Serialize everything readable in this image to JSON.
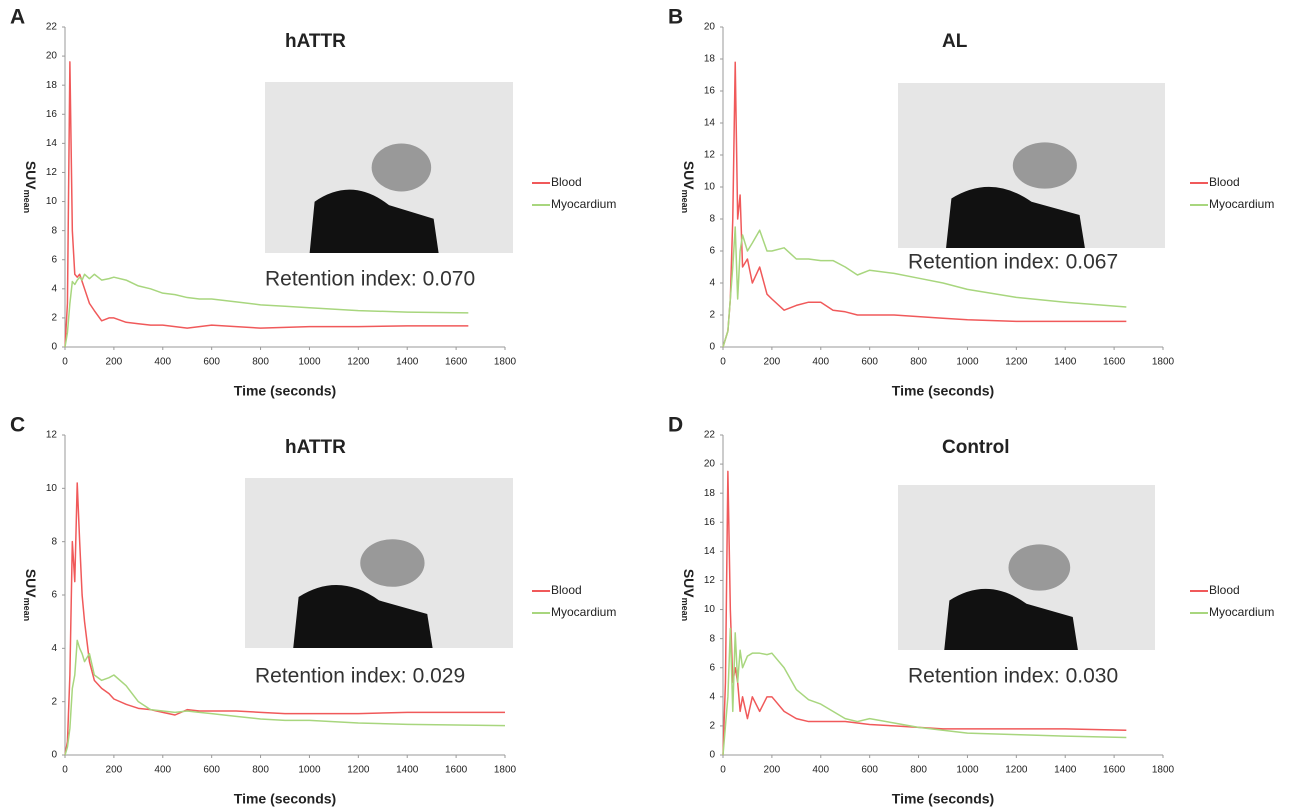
{
  "chart_data": [
    {
      "type": "line",
      "panel": "A",
      "title": "hATTR",
      "xlabel": "Time (seconds)",
      "ylabel": "SUV",
      "ylabel_sub": "mean",
      "annotation": "Retention index: 0.070",
      "x": [
        0,
        10,
        20,
        30,
        40,
        50,
        60,
        70,
        80,
        100,
        120,
        150,
        180,
        200,
        250,
        300,
        350,
        400,
        450,
        500,
        550,
        600,
        700,
        800,
        900,
        1000,
        1200,
        1400,
        1650
      ],
      "series": [
        {
          "name": "Blood",
          "color": "#f0595a",
          "values": [
            0,
            3,
            19.6,
            8,
            5,
            4.8,
            5,
            4.5,
            4,
            3,
            2.5,
            1.8,
            2,
            2,
            1.7,
            1.6,
            1.5,
            1.5,
            1.4,
            1.3,
            1.4,
            1.5,
            1.4,
            1.3,
            1.35,
            1.4,
            1.4,
            1.45,
            1.45
          ]
        },
        {
          "name": "Myocardium",
          "color": "#a8d67e",
          "values": [
            0,
            1,
            3,
            4.5,
            4.3,
            4.6,
            4.8,
            4.6,
            5,
            4.7,
            5,
            4.6,
            4.7,
            4.8,
            4.6,
            4.2,
            4,
            3.7,
            3.6,
            3.4,
            3.3,
            3.3,
            3.1,
            2.9,
            2.8,
            2.7,
            2.5,
            2.4,
            2.35
          ]
        }
      ],
      "xlim": [
        0,
        1800
      ],
      "xticks": [
        0,
        200,
        400,
        600,
        800,
        1000,
        1200,
        1400,
        1600,
        1800
      ],
      "ylim": [
        0,
        22
      ],
      "yticks": [
        0,
        2,
        4,
        6,
        8,
        10,
        12,
        14,
        16,
        18,
        20,
        22
      ]
    },
    {
      "type": "line",
      "panel": "B",
      "title": "AL",
      "xlabel": "Time (seconds)",
      "ylabel": "SUV",
      "ylabel_sub": "mean",
      "annotation": "Retention index: 0.067",
      "x": [
        0,
        10,
        20,
        30,
        40,
        50,
        60,
        70,
        80,
        100,
        120,
        150,
        180,
        200,
        250,
        300,
        350,
        400,
        450,
        500,
        550,
        600,
        700,
        800,
        900,
        1000,
        1200,
        1400,
        1650
      ],
      "series": [
        {
          "name": "Blood",
          "color": "#f0595a",
          "values": [
            0,
            0.5,
            1,
            3,
            8,
            17.8,
            8,
            9.5,
            5,
            5.5,
            4,
            5,
            3.3,
            3,
            2.3,
            2.6,
            2.8,
            2.8,
            2.3,
            2.2,
            2,
            2,
            2,
            1.9,
            1.8,
            1.7,
            1.6,
            1.6,
            1.6
          ]
        },
        {
          "name": "Myocardium",
          "color": "#a8d67e",
          "values": [
            0,
            0.5,
            1,
            3,
            5,
            7.5,
            3,
            6,
            7,
            6,
            6.5,
            7.3,
            6,
            6,
            6.2,
            5.5,
            5.5,
            5.4,
            5.4,
            5,
            4.5,
            4.8,
            4.6,
            4.3,
            4,
            3.6,
            3.1,
            2.8,
            2.5
          ]
        }
      ],
      "xlim": [
        0,
        1800
      ],
      "xticks": [
        0,
        200,
        400,
        600,
        800,
        1000,
        1200,
        1400,
        1600,
        1800
      ],
      "ylim": [
        0,
        20
      ],
      "yticks": [
        0,
        2,
        4,
        6,
        8,
        10,
        12,
        14,
        16,
        18,
        20
      ]
    },
    {
      "type": "line",
      "panel": "C",
      "title": "hATTR",
      "xlabel": "Time (seconds)",
      "ylabel": "SUV",
      "ylabel_sub": "mean",
      "annotation": "Retention index: 0.029",
      "x": [
        0,
        10,
        20,
        30,
        40,
        50,
        60,
        70,
        80,
        100,
        120,
        150,
        180,
        200,
        250,
        300,
        350,
        400,
        450,
        500,
        550,
        600,
        700,
        800,
        900,
        1000,
        1200,
        1400,
        1800
      ],
      "series": [
        {
          "name": "Blood",
          "color": "#f0595a",
          "values": [
            0,
            0.5,
            3,
            8,
            6.5,
            10.2,
            8,
            6,
            5,
            3.5,
            2.8,
            2.5,
            2.3,
            2.1,
            1.9,
            1.75,
            1.7,
            1.6,
            1.5,
            1.7,
            1.65,
            1.65,
            1.65,
            1.6,
            1.55,
            1.55,
            1.55,
            1.6,
            1.6
          ]
        },
        {
          "name": "Myocardium",
          "color": "#a8d67e",
          "values": [
            0,
            0.3,
            1,
            2.5,
            3,
            4.3,
            4,
            3.8,
            3.5,
            3.8,
            3,
            2.8,
            2.9,
            3,
            2.6,
            2.0,
            1.7,
            1.65,
            1.6,
            1.65,
            1.6,
            1.55,
            1.45,
            1.35,
            1.3,
            1.3,
            1.2,
            1.15,
            1.1
          ]
        }
      ],
      "xlim": [
        0,
        1800
      ],
      "xticks": [
        0,
        200,
        400,
        600,
        800,
        1000,
        1200,
        1400,
        1600,
        1800
      ],
      "ylim": [
        0,
        12
      ],
      "yticks": [
        0,
        2,
        4,
        6,
        8,
        10,
        12
      ]
    },
    {
      "type": "line",
      "panel": "D",
      "title": "Control",
      "xlabel": "Time (seconds)",
      "ylabel": "SUV",
      "ylabel_sub": "mean",
      "annotation": "Retention index: 0.030",
      "x": [
        0,
        10,
        20,
        30,
        40,
        50,
        60,
        70,
        80,
        100,
        120,
        150,
        180,
        200,
        250,
        300,
        350,
        400,
        450,
        500,
        550,
        600,
        700,
        800,
        900,
        1000,
        1200,
        1400,
        1650
      ],
      "series": [
        {
          "name": "Blood",
          "color": "#f0595a",
          "values": [
            0,
            5,
            19.5,
            10,
            5,
            6,
            5,
            3,
            4,
            2.5,
            4,
            3,
            4,
            4,
            3,
            2.5,
            2.3,
            2.3,
            2.3,
            2.3,
            2.2,
            2.1,
            2,
            1.9,
            1.8,
            1.8,
            1.8,
            1.8,
            1.7
          ]
        },
        {
          "name": "Myocardium",
          "color": "#a8d67e",
          "values": [
            0,
            2,
            4,
            8.7,
            3,
            8.4,
            5,
            7.2,
            6,
            6.8,
            7,
            7,
            6.9,
            7,
            6,
            4.5,
            3.8,
            3.5,
            3,
            2.5,
            2.3,
            2.5,
            2.2,
            1.9,
            1.7,
            1.5,
            1.4,
            1.3,
            1.2
          ]
        }
      ],
      "xlim": [
        0,
        1800
      ],
      "xticks": [
        0,
        200,
        400,
        600,
        800,
        1000,
        1200,
        1400,
        1600,
        1800
      ],
      "ylim": [
        0,
        22
      ],
      "yticks": [
        0,
        2,
        4,
        6,
        8,
        10,
        12,
        14,
        16,
        18,
        20,
        22
      ]
    }
  ]
}
